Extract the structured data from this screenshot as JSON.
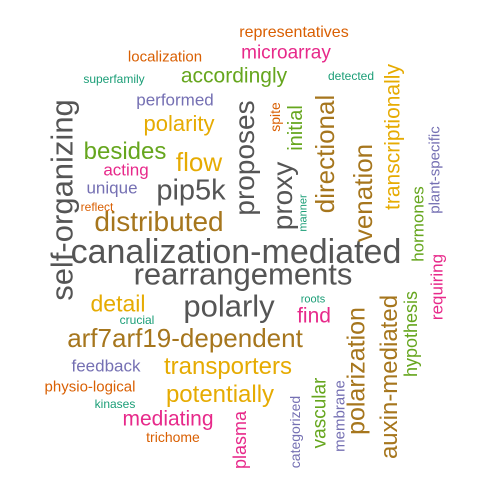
{
  "words": [
    {
      "text": "representatives",
      "color": "#d95f02"
    },
    {
      "text": "localization",
      "color": "#d95f02"
    },
    {
      "text": "microarray",
      "color": "#e7298a"
    },
    {
      "text": "superfamily",
      "color": "#1b9e77"
    },
    {
      "text": "accordingly",
      "color": "#66a61e"
    },
    {
      "text": "detected",
      "color": "#1b9e77"
    },
    {
      "text": "performed",
      "color": "#7570b3"
    },
    {
      "text": "polarity",
      "color": "#e6ab02"
    },
    {
      "text": "spite",
      "color": "#d95f02"
    },
    {
      "text": "besides",
      "color": "#66a61e"
    },
    {
      "text": "acting",
      "color": "#e7298a"
    },
    {
      "text": "flow",
      "color": "#e6ab02"
    },
    {
      "text": "unique",
      "color": "#7570b3"
    },
    {
      "text": "pip5k",
      "color": "#555555"
    },
    {
      "text": "reflect",
      "color": "#d95f02"
    },
    {
      "text": "distributed",
      "color": "#a6761d"
    },
    {
      "text": "manner",
      "color": "#1b9e77"
    },
    {
      "text": "canalization-mediated",
      "color": "#555555"
    },
    {
      "text": "rearrangements",
      "color": "#555555"
    },
    {
      "text": "detail",
      "color": "#e6ab02"
    },
    {
      "text": "polarly",
      "color": "#555555"
    },
    {
      "text": "roots",
      "color": "#1b9e77"
    },
    {
      "text": "crucial",
      "color": "#1b9e77"
    },
    {
      "text": "find",
      "color": "#e7298a"
    },
    {
      "text": "arf7arf19-dependent",
      "color": "#a6761d"
    },
    {
      "text": "feedback",
      "color": "#7570b3"
    },
    {
      "text": "transporters",
      "color": "#e6ab02"
    },
    {
      "text": "physio-logical",
      "color": "#d95f02"
    },
    {
      "text": "potentially",
      "color": "#e6ab02"
    },
    {
      "text": "kinases",
      "color": "#1b9e77"
    },
    {
      "text": "mediating",
      "color": "#e7298a"
    },
    {
      "text": "trichome",
      "color": "#d95f02"
    },
    {
      "text": "self-organizing",
      "color": "#555555"
    },
    {
      "text": "proposes",
      "color": "#555555"
    },
    {
      "text": "initial",
      "color": "#66a61e"
    },
    {
      "text": "proxy",
      "color": "#555555"
    },
    {
      "text": "directional",
      "color": "#a6761d"
    },
    {
      "text": "venation",
      "color": "#a6761d"
    },
    {
      "text": "transcriptionally",
      "color": "#e6ab02"
    },
    {
      "text": "hormones",
      "color": "#66a61e"
    },
    {
      "text": "plant-specific",
      "color": "#7570b3"
    },
    {
      "text": "requiring",
      "color": "#e7298a"
    },
    {
      "text": "hypothesis",
      "color": "#66a61e"
    },
    {
      "text": "auxin-mediated",
      "color": "#a6761d"
    },
    {
      "text": "polarization",
      "color": "#a6761d"
    },
    {
      "text": "membrane",
      "color": "#7570b3"
    },
    {
      "text": "vascular",
      "color": "#66a61e"
    },
    {
      "text": "categorized",
      "color": "#7570b3"
    },
    {
      "text": "plasma",
      "color": "#e7298a"
    }
  ]
}
